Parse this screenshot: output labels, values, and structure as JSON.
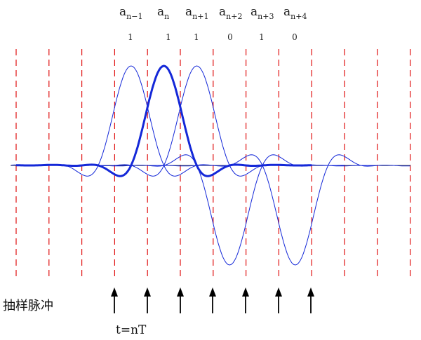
{
  "symbols": [
    {
      "base": "a",
      "sub": "n−1",
      "bit": "1"
    },
    {
      "base": "a",
      "sub": "n",
      "bit": "1"
    },
    {
      "base": "a",
      "sub": "n+1",
      "bit": "1"
    },
    {
      "base": "a",
      "sub": "n+2",
      "bit": "0"
    },
    {
      "base": "a",
      "sub": "n+3",
      "bit": "1"
    },
    {
      "base": "a",
      "sub": "n+4",
      "bit": "0"
    }
  ],
  "sampling_label": "抽样脉冲",
  "time_label": "t=nT",
  "colors": {
    "grid": "#e01010",
    "pulse": "#1428d8",
    "axis": "#333333",
    "arrow": "#000000"
  },
  "icons": {
    "sample_arrow": "up-arrow-icon"
  }
}
